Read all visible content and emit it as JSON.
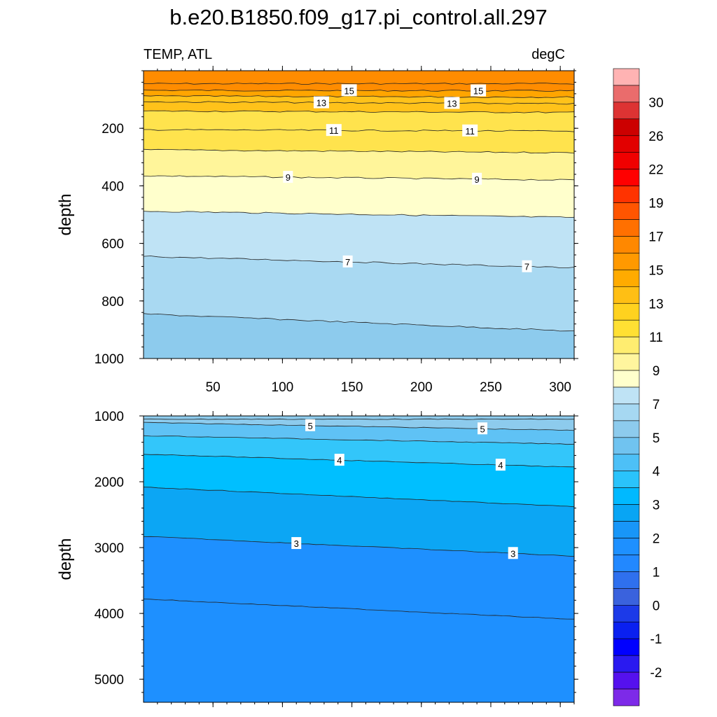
{
  "chart_data": {
    "type": "heatmap",
    "title": "b.e20.B1850.f09_g17.pi_control.all.297",
    "left_subtitle": "TEMP, ATL",
    "right_subtitle": "degC",
    "xlim": [
      0,
      310
    ],
    "x_ticks": [
      50,
      100,
      150,
      200,
      250,
      300
    ],
    "colors": {
      "orange_dark": "#ff8c00",
      "orange": "#ffa500",
      "amber": "#ffc21a",
      "yellow": "#ffe34d",
      "light_yellow": "#fff59a",
      "cream": "#ffffcc",
      "pale_blue": "#bfe3f5",
      "light_blue": "#a9d9f2",
      "sky_blue": "#8dcbed",
      "mid_blue": "#5fc2f5",
      "cyan_blue": "#33c6fa",
      "deep_sky": "#00bfff",
      "blue3": "#0ca6f4",
      "dodger": "#1e90ff"
    },
    "panels": [
      {
        "ylabel": "depth",
        "ylim": [
          1000,
          0
        ],
        "y_ticks": [
          200,
          400,
          600,
          800,
          1000
        ],
        "contours": [
          {
            "level": 16,
            "depth_left": 45,
            "depth_right": 45,
            "color": "orange_dark",
            "labels": []
          },
          {
            "level": 15,
            "depth_left": 68,
            "depth_right": 70,
            "color": "orange",
            "labels": [
              {
                "x": 148,
                "text": "15"
              },
              {
                "x": 241,
                "text": "15"
              }
            ]
          },
          {
            "level": 14,
            "depth_left": 88,
            "depth_right": 92,
            "color": "amber",
            "labels": []
          },
          {
            "level": 13,
            "depth_left": 108,
            "depth_right": 115,
            "color": "amber",
            "labels": [
              {
                "x": 128,
                "text": "13"
              },
              {
                "x": 222,
                "text": "13"
              }
            ]
          },
          {
            "level": 12,
            "depth_left": 140,
            "depth_right": 145,
            "color": "yellow",
            "labels": []
          },
          {
            "level": 11,
            "depth_left": 205,
            "depth_right": 210,
            "color": "yellow",
            "labels": [
              {
                "x": 137,
                "text": "11"
              },
              {
                "x": 235,
                "text": "11"
              }
            ]
          },
          {
            "level": 10,
            "depth_left": 275,
            "depth_right": 285,
            "color": "light_yellow",
            "labels": []
          },
          {
            "level": 9,
            "depth_left": 365,
            "depth_right": 380,
            "color": "cream",
            "labels": [
              {
                "x": 104,
                "text": "9"
              },
              {
                "x": 240,
                "text": "9"
              }
            ]
          },
          {
            "level": 8,
            "depth_left": 488,
            "depth_right": 510,
            "color": "pale_blue",
            "labels": []
          },
          {
            "level": 7,
            "depth_left": 645,
            "depth_right": 685,
            "color": "light_blue",
            "labels": [
              {
                "x": 147,
                "text": "7"
              },
              {
                "x": 276,
                "text": "7"
              }
            ]
          },
          {
            "level": 6,
            "depth_left": 845,
            "depth_right": 905,
            "color": "sky_blue",
            "labels": []
          }
        ]
      },
      {
        "ylabel": "depth",
        "ylim": [
          5350,
          1000
        ],
        "y_ticks": [
          1000,
          2000,
          3000,
          4000,
          5000
        ],
        "contours": [
          {
            "level": 6,
            "depth_left": 1050,
            "depth_right": 1050,
            "color": "sky_blue",
            "labels": []
          },
          {
            "level": 5,
            "depth_left": 1100,
            "depth_right": 1220,
            "color": "mid_blue",
            "labels": [
              {
                "x": 120,
                "text": "5"
              },
              {
                "x": 244,
                "text": "5"
              }
            ]
          },
          {
            "level": 4.5,
            "depth_left": 1300,
            "depth_right": 1430,
            "color": "cyan_blue",
            "labels": []
          },
          {
            "level": 4,
            "depth_left": 1580,
            "depth_right": 1780,
            "color": "deep_sky",
            "labels": [
              {
                "x": 141,
                "text": "4"
              },
              {
                "x": 257,
                "text": "4"
              }
            ]
          },
          {
            "level": 3.5,
            "depth_left": 2080,
            "depth_right": 2380,
            "color": "blue3",
            "labels": []
          },
          {
            "level": 3,
            "depth_left": 2830,
            "depth_right": 3130,
            "color": "dodger",
            "labels": [
              {
                "x": 110,
                "text": "3"
              },
              {
                "x": 266,
                "text": "3"
              }
            ]
          },
          {
            "level": 2.5,
            "depth_left": 3780,
            "depth_right": 4090,
            "color": "dodger",
            "labels": []
          }
        ]
      }
    ],
    "colorbar": {
      "labels": [
        "30",
        "26",
        "22",
        "19",
        "17",
        "15",
        "13",
        "11",
        "9",
        "7",
        "5",
        "4",
        "3",
        "2",
        "1",
        "0",
        "-1",
        "-2"
      ],
      "colors": [
        "#ffb3b3",
        "#ea6c6c",
        "#dd3333",
        "#cc0000",
        "#e20000",
        "#f00000",
        "#ff0000",
        "#ff3300",
        "#ff5500",
        "#ff7000",
        "#ff8800",
        "#ff9900",
        "#ffab00",
        "#ffbf14",
        "#ffd21f",
        "#ffe033",
        "#ffed70",
        "#fff59e",
        "#ffffcc",
        "#bfe3f5",
        "#a6d8f2",
        "#8dcbed",
        "#70c3f0",
        "#4dc0f7",
        "#2ac3fb",
        "#00b9ff",
        "#08a5f4",
        "#1896f8",
        "#1e90ff",
        "#2288ff",
        "#2f70ee",
        "#3a62dd",
        "#1c3ae8",
        "#0a20f0",
        "#0000ff",
        "#2a1af0",
        "#5511ee",
        "#7d2ae8"
      ]
    }
  }
}
